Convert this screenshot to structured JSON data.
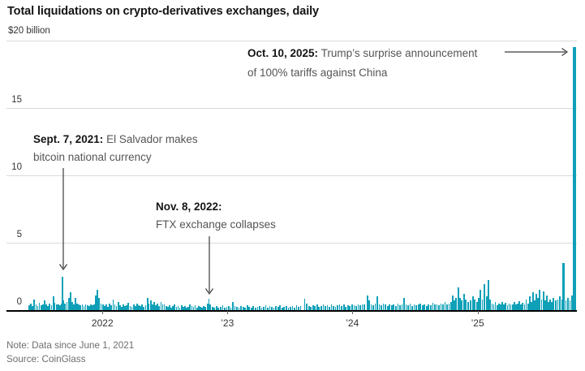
{
  "title": "Total liquidations on crypto-derivatives exchanges, daily",
  "chart_data": {
    "type": "bar",
    "title": "Total liquidations on crypto-derivatives exchanges, daily",
    "unit": "billion USD",
    "ylabel_top": "$20 billion",
    "ylim": [
      0,
      20
    ],
    "y_gridlines": [
      20,
      15,
      10,
      5,
      0
    ],
    "x_start": "June 1, 2021",
    "x_domain_days": 1600,
    "x_ticks": [
      {
        "label": "2022",
        "day": 214
      },
      {
        "label": "’23",
        "day": 579
      },
      {
        "label": "’24",
        "day": 944
      },
      {
        "label": "’25",
        "day": 1310
      }
    ],
    "bar_color": "#0fa0b8",
    "grid": true,
    "legend": "none",
    "annotations": [
      {
        "id": "el-salvador",
        "date": "Sept. 7, 2021:",
        "line1": "El Salvador makes",
        "line2": "bitcoin national currency"
      },
      {
        "id": "ftx",
        "date": "Nov. 8, 2022:",
        "line1": "",
        "line2": "FTX exchange collapses"
      },
      {
        "id": "tariffs",
        "date": "Oct. 10, 2025:",
        "line1": "Trump’s surprise announcement",
        "line2": "of 100% tariffs against China"
      }
    ],
    "bars": [
      [
        0,
        0.35
      ],
      [
        5,
        0.5
      ],
      [
        10,
        0.3
      ],
      [
        15,
        0.8
      ],
      [
        20,
        0.4
      ],
      [
        25,
        0.3
      ],
      [
        30,
        0.55
      ],
      [
        35,
        0.35
      ],
      [
        40,
        0.45
      ],
      [
        45,
        0.7
      ],
      [
        50,
        0.4
      ],
      [
        55,
        0.3
      ],
      [
        60,
        0.5
      ],
      [
        65,
        0.35
      ],
      [
        70,
        1.0
      ],
      [
        75,
        0.55
      ],
      [
        80,
        0.4
      ],
      [
        85,
        0.45
      ],
      [
        90,
        0.35
      ],
      [
        95,
        0.5
      ],
      [
        98,
        2.5
      ],
      [
        101,
        0.7
      ],
      [
        105,
        0.5
      ],
      [
        110,
        0.6
      ],
      [
        115,
        0.9
      ],
      [
        120,
        1.3
      ],
      [
        125,
        0.6
      ],
      [
        130,
        0.45
      ],
      [
        135,
        0.9
      ],
      [
        140,
        0.5
      ],
      [
        145,
        0.4
      ],
      [
        150,
        0.35
      ],
      [
        155,
        0.45
      ],
      [
        160,
        0.3
      ],
      [
        165,
        0.4
      ],
      [
        170,
        0.35
      ],
      [
        175,
        0.3
      ],
      [
        180,
        0.45
      ],
      [
        185,
        0.35
      ],
      [
        190,
        0.4
      ],
      [
        195,
        1.1
      ],
      [
        200,
        1.5
      ],
      [
        205,
        0.9
      ],
      [
        210,
        0.5
      ],
      [
        215,
        0.4
      ],
      [
        220,
        0.3
      ],
      [
        225,
        0.4
      ],
      [
        230,
        0.25
      ],
      [
        235,
        0.5
      ],
      [
        240,
        0.35
      ],
      [
        245,
        0.8
      ],
      [
        250,
        0.4
      ],
      [
        255,
        0.3
      ],
      [
        260,
        0.6
      ],
      [
        265,
        0.35
      ],
      [
        270,
        0.25
      ],
      [
        275,
        0.45
      ],
      [
        280,
        0.3
      ],
      [
        285,
        0.35
      ],
      [
        290,
        0.55
      ],
      [
        295,
        0.3
      ],
      [
        300,
        0.25
      ],
      [
        305,
        0.4
      ],
      [
        310,
        0.3
      ],
      [
        315,
        0.5
      ],
      [
        320,
        0.35
      ],
      [
        325,
        0.3
      ],
      [
        330,
        0.45
      ],
      [
        335,
        0.25
      ],
      [
        340,
        0.35
      ],
      [
        345,
        0.9
      ],
      [
        350,
        0.5
      ],
      [
        355,
        0.7
      ],
      [
        360,
        0.4
      ],
      [
        365,
        0.6
      ],
      [
        370,
        0.35
      ],
      [
        375,
        0.5
      ],
      [
        380,
        0.3
      ],
      [
        385,
        0.6
      ],
      [
        390,
        0.4
      ],
      [
        395,
        0.45
      ],
      [
        400,
        0.3
      ],
      [
        405,
        0.25
      ],
      [
        410,
        0.35
      ],
      [
        415,
        0.2
      ],
      [
        420,
        0.3
      ],
      [
        425,
        0.4
      ],
      [
        430,
        0.25
      ],
      [
        435,
        0.3
      ],
      [
        440,
        0.2
      ],
      [
        445,
        0.35
      ],
      [
        450,
        0.25
      ],
      [
        455,
        0.3
      ],
      [
        460,
        0.2
      ],
      [
        465,
        0.25
      ],
      [
        470,
        0.4
      ],
      [
        475,
        0.3
      ],
      [
        480,
        0.25
      ],
      [
        485,
        0.35
      ],
      [
        490,
        0.2
      ],
      [
        495,
        0.3
      ],
      [
        500,
        0.25
      ],
      [
        505,
        0.2
      ],
      [
        510,
        0.3
      ],
      [
        515,
        0.25
      ],
      [
        521,
        0.5
      ],
      [
        525,
        0.85
      ],
      [
        529,
        0.45
      ],
      [
        535,
        0.25
      ],
      [
        541,
        0.2
      ],
      [
        547,
        0.3
      ],
      [
        553,
        0.2
      ],
      [
        559,
        0.25
      ],
      [
        565,
        0.35
      ],
      [
        571,
        0.2
      ],
      [
        577,
        0.25
      ],
      [
        583,
        0.3
      ],
      [
        589,
        0.2
      ],
      [
        595,
        0.6
      ],
      [
        601,
        0.3
      ],
      [
        607,
        0.25
      ],
      [
        613,
        0.2
      ],
      [
        619,
        0.3
      ],
      [
        625,
        0.25
      ],
      [
        631,
        0.2
      ],
      [
        637,
        0.35
      ],
      [
        643,
        0.25
      ],
      [
        649,
        0.2
      ],
      [
        655,
        0.3
      ],
      [
        661,
        0.2
      ],
      [
        667,
        0.25
      ],
      [
        673,
        0.3
      ],
      [
        679,
        0.2
      ],
      [
        685,
        0.25
      ],
      [
        691,
        0.35
      ],
      [
        697,
        0.2
      ],
      [
        703,
        0.3
      ],
      [
        709,
        0.25
      ],
      [
        715,
        0.2
      ],
      [
        721,
        0.3
      ],
      [
        727,
        0.25
      ],
      [
        733,
        0.35
      ],
      [
        739,
        0.2
      ],
      [
        745,
        0.25
      ],
      [
        751,
        0.3
      ],
      [
        757,
        0.2
      ],
      [
        763,
        0.25
      ],
      [
        769,
        0.3
      ],
      [
        775,
        0.2
      ],
      [
        781,
        0.35
      ],
      [
        787,
        0.25
      ],
      [
        793,
        0.3
      ],
      [
        805,
        0.85
      ],
      [
        811,
        0.5
      ],
      [
        817,
        0.3
      ],
      [
        823,
        0.25
      ],
      [
        829,
        0.35
      ],
      [
        835,
        0.3
      ],
      [
        841,
        0.4
      ],
      [
        847,
        0.25
      ],
      [
        853,
        0.3
      ],
      [
        859,
        0.45
      ],
      [
        865,
        0.3
      ],
      [
        871,
        0.35
      ],
      [
        877,
        0.25
      ],
      [
        883,
        0.4
      ],
      [
        889,
        0.3
      ],
      [
        895,
        0.25
      ],
      [
        901,
        0.35
      ],
      [
        907,
        0.45
      ],
      [
        913,
        0.3
      ],
      [
        919,
        0.4
      ],
      [
        925,
        0.25
      ],
      [
        931,
        0.35
      ],
      [
        937,
        0.3
      ],
      [
        943,
        0.45
      ],
      [
        949,
        0.35
      ],
      [
        955,
        0.3
      ],
      [
        961,
        0.4
      ],
      [
        967,
        0.35
      ],
      [
        973,
        0.45
      ],
      [
        979,
        0.4
      ],
      [
        988,
        1.1
      ],
      [
        993,
        0.7
      ],
      [
        999,
        0.4
      ],
      [
        1005,
        0.35
      ],
      [
        1011,
        0.5
      ],
      [
        1017,
        1.0
      ],
      [
        1023,
        0.45
      ],
      [
        1029,
        0.35
      ],
      [
        1035,
        0.5
      ],
      [
        1041,
        0.4
      ],
      [
        1047,
        0.3
      ],
      [
        1053,
        0.45
      ],
      [
        1059,
        0.35
      ],
      [
        1065,
        0.4
      ],
      [
        1071,
        0.3
      ],
      [
        1077,
        0.5
      ],
      [
        1083,
        0.35
      ],
      [
        1089,
        0.45
      ],
      [
        1095,
        0.9
      ],
      [
        1101,
        0.4
      ],
      [
        1107,
        0.35
      ],
      [
        1113,
        0.5
      ],
      [
        1119,
        0.3
      ],
      [
        1125,
        0.45
      ],
      [
        1131,
        0.35
      ],
      [
        1137,
        0.4
      ],
      [
        1143,
        0.5
      ],
      [
        1149,
        0.35
      ],
      [
        1155,
        0.45
      ],
      [
        1161,
        0.3
      ],
      [
        1167,
        0.4
      ],
      [
        1173,
        0.35
      ],
      [
        1179,
        0.55
      ],
      [
        1185,
        0.4
      ],
      [
        1191,
        0.45
      ],
      [
        1197,
        0.35
      ],
      [
        1203,
        0.5
      ],
      [
        1209,
        0.4
      ],
      [
        1215,
        0.6
      ],
      [
        1221,
        0.45
      ],
      [
        1227,
        0.5
      ],
      [
        1232,
        0.6
      ],
      [
        1237,
        1.1
      ],
      [
        1242,
        0.7
      ],
      [
        1247,
        0.9
      ],
      [
        1254,
        1.7
      ],
      [
        1259,
        0.9
      ],
      [
        1264,
        0.7
      ],
      [
        1270,
        1.2
      ],
      [
        1276,
        0.8
      ],
      [
        1282,
        0.6
      ],
      [
        1290,
        0.7
      ],
      [
        1296,
        1.0
      ],
      [
        1302,
        0.8
      ],
      [
        1308,
        0.6
      ],
      [
        1313,
        0.9
      ],
      [
        1318,
        1.5
      ],
      [
        1324,
        0.8
      ],
      [
        1330,
        1.9
      ],
      [
        1336,
        1.0
      ],
      [
        1342,
        2.2
      ],
      [
        1347,
        0.8
      ],
      [
        1352,
        0.5
      ],
      [
        1357,
        0.4
      ],
      [
        1362,
        0.6
      ],
      [
        1367,
        0.35
      ],
      [
        1372,
        0.5
      ],
      [
        1377,
        0.45
      ],
      [
        1382,
        0.6
      ],
      [
        1387,
        0.4
      ],
      [
        1392,
        0.55
      ],
      [
        1397,
        0.35
      ],
      [
        1402,
        0.5
      ],
      [
        1407,
        0.4
      ],
      [
        1412,
        0.45
      ],
      [
        1417,
        0.6
      ],
      [
        1422,
        0.4
      ],
      [
        1427,
        0.5
      ],
      [
        1432,
        0.65
      ],
      [
        1437,
        0.45
      ],
      [
        1442,
        0.55
      ],
      [
        1447,
        0.4
      ],
      [
        1452,
        0.8
      ],
      [
        1457,
        0.5
      ],
      [
        1462,
        1.0
      ],
      [
        1467,
        0.6
      ],
      [
        1472,
        1.3
      ],
      [
        1477,
        0.7
      ],
      [
        1482,
        1.2
      ],
      [
        1487,
        0.9
      ],
      [
        1492,
        1.5
      ],
      [
        1497,
        0.8
      ],
      [
        1502,
        1.4
      ],
      [
        1507,
        0.7
      ],
      [
        1512,
        1.1
      ],
      [
        1517,
        0.6
      ],
      [
        1522,
        0.8
      ],
      [
        1527,
        0.6
      ],
      [
        1532,
        0.9
      ],
      [
        1538,
        0.7
      ],
      [
        1544,
        0.8
      ],
      [
        1550,
        1.0
      ],
      [
        1556,
        0.8
      ],
      [
        1562,
        3.5
      ],
      [
        1568,
        0.7
      ],
      [
        1574,
        0.9
      ],
      [
        1580,
        0.7
      ],
      [
        1586,
        1.1
      ],
      [
        1592,
        19.5
      ]
    ]
  },
  "footer": {
    "note": "Note: Data since June 1, 2021",
    "source": "Source: CoinGlass"
  }
}
